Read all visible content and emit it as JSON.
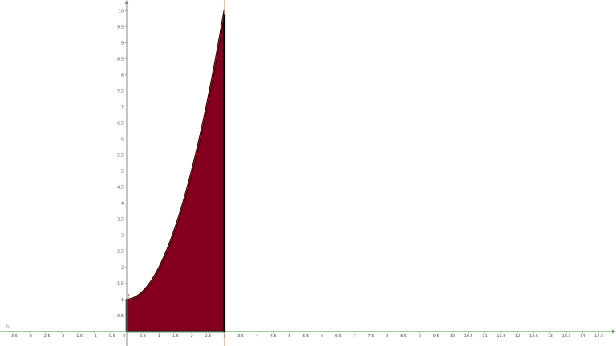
{
  "chart_data": {
    "type": "area",
    "function_label": "f",
    "line_label": "h",
    "curve": {
      "expression": "x^2 + 1",
      "domain": [
        0,
        3
      ]
    },
    "shaded_region": {
      "from": 0,
      "to": 3
    },
    "vertical_line_x": 3,
    "xlim": [
      -3.9,
      15.0
    ],
    "ylim": [
      -0.45,
      10.3
    ],
    "x_ticks": [
      "-3.5",
      "-3",
      "-2.5",
      "-2",
      "-1.5",
      "-1",
      "-0.5",
      "0",
      "0.5",
      "1",
      "1.5",
      "2",
      "2.5",
      "3",
      "3.5",
      "4",
      "4.5",
      "5",
      "5.5",
      "6",
      "6.5",
      "7",
      "7.5",
      "8",
      "8.5",
      "9",
      "9.5",
      "10",
      "10.5",
      "11",
      "11.5",
      "12",
      "12.5",
      "13",
      "13.5",
      "14",
      "14.5"
    ],
    "y_ticks": [
      "0.5",
      "1",
      "1.5",
      "2",
      "2.5",
      "3",
      "3.5",
      "4",
      "4.5",
      "5",
      "5.5",
      "6",
      "6.5",
      "7",
      "7.5",
      "8",
      "8.5",
      "9",
      "9.5",
      "10"
    ],
    "grid": false,
    "colors": {
      "fill": "#85001f",
      "curve": "#d62020",
      "boundary": "#000000",
      "x_axis_line": "#6aa86a",
      "y_axis": "#888888",
      "vertical_line": "#f0a070"
    }
  }
}
